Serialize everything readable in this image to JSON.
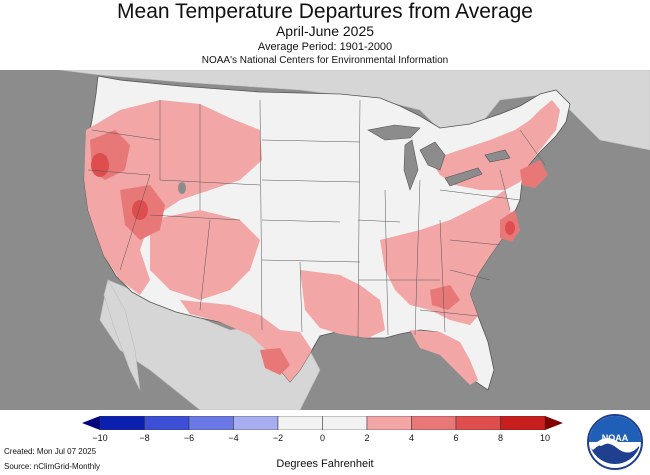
{
  "header": {
    "title": "Mean Temperature Departures from Average",
    "subtitle": "April-June 2025",
    "period": "Average Period: 1901-2000",
    "source": "NOAA's National Centers for Environmental Information"
  },
  "legend": {
    "ticks": [
      "−10",
      "−8",
      "−6",
      "−4",
      "−2",
      "0",
      "2",
      "4",
      "6",
      "8",
      "10"
    ],
    "colors": [
      "#0b1fb0",
      "#3d4fd6",
      "#6a79e6",
      "#a6aef0",
      "#f2f2f2",
      "#f2f2f2",
      "#f2a6a6",
      "#e87878",
      "#de4e4e",
      "#c81e1e"
    ],
    "units": "Degrees Fahrenheit"
  },
  "footer": {
    "created": "Created: Mon Jul 07 2025",
    "source": "Source: nClimGrid-Monthly"
  },
  "logo": {
    "text": "NOAA"
  }
}
